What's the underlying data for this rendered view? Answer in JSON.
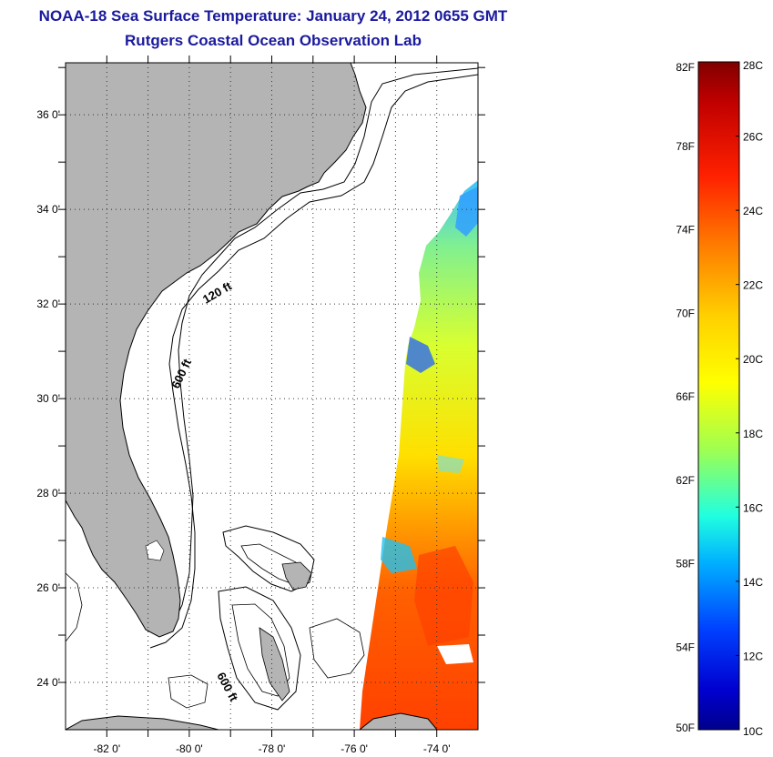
{
  "header": {
    "title": "NOAA-18 Sea Surface Temperature:  January 24, 2012 0655 GMT",
    "subtitle": "Rutgers Coastal Ocean Observation Lab"
  },
  "map": {
    "lat_labels": [
      "36 0'",
      "34 0'",
      "32 0'",
      "30 0'",
      "28 0'",
      "26 0'",
      "24 0'"
    ],
    "lon_labels": [
      "-82 0'",
      "-80 0'",
      "-78 0'",
      "-76 0'",
      "-74 0'"
    ],
    "lat_range": [
      23,
      37.1
    ],
    "lon_range": [
      -83,
      -73
    ],
    "contour_labels": {
      "c120_upper": "120 ft",
      "c600_upper": "600 ft",
      "c600_lower": "600 ft"
    },
    "land_color": "#b4b4b4"
  },
  "colorbar": {
    "fahrenheit_labels": [
      "82F",
      "78F",
      "74F",
      "70F",
      "66F",
      "62F",
      "58F",
      "54F",
      "50F"
    ],
    "celsius_labels": [
      "28C",
      "26C",
      "24C",
      "22C",
      "20C",
      "18C",
      "16C",
      "14C",
      "12C",
      "10C"
    ],
    "range_c": [
      10,
      28
    ],
    "colormap": "jet"
  }
}
